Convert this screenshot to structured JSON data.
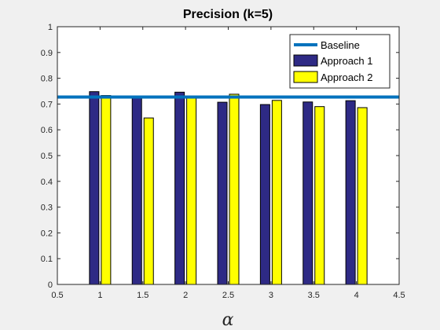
{
  "chart_data": {
    "type": "bar",
    "title": "Precision (k=5)",
    "xlabel": "α",
    "ylabel": "",
    "xlim": [
      0.5,
      4.5
    ],
    "ylim": [
      0,
      1
    ],
    "xticks": [
      "0.5",
      "1",
      "1.5",
      "2",
      "2.5",
      "3",
      "3.5",
      "4",
      "4.5"
    ],
    "yticks": [
      "0",
      "0.1",
      "0.2",
      "0.3",
      "0.4",
      "0.5",
      "0.6",
      "0.7",
      "0.8",
      "0.9",
      "1"
    ],
    "x": [
      1,
      1.5,
      2,
      2.5,
      3,
      3.5,
      4
    ],
    "baseline": {
      "name": "Baseline",
      "value": 0.727,
      "color": "#0072bd"
    },
    "series": [
      {
        "name": "Approach 1",
        "color": "#2e2a85",
        "values": [
          0.748,
          0.731,
          0.746,
          0.707,
          0.698,
          0.708,
          0.713
        ]
      },
      {
        "name": "Approach 2",
        "color": "#ffff00",
        "values": [
          0.733,
          0.646,
          0.723,
          0.738,
          0.714,
          0.69,
          0.686
        ]
      }
    ],
    "grid": false,
    "legend_position": "top-right"
  }
}
